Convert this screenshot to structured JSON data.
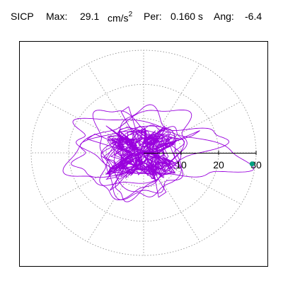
{
  "header": {
    "station": "SICP",
    "max_label": "Max:",
    "max_value": "29.1",
    "max_unit": "cm/s",
    "max_unit_exp": "2",
    "period_label": "Per:",
    "period_value": "0.160 s",
    "angle_label": "Ang:",
    "angle_value": "-6.4"
  },
  "chart_data": {
    "type": "scatter",
    "plot_kind": "polar particle-motion orbit",
    "max_amplitude": 29.1,
    "max_unit": "cm/s^2",
    "period_s": 0.16,
    "angle_deg": -6.4,
    "r_ticks": [
      10,
      20,
      30
    ],
    "r_tick_labels": [
      "10",
      "20",
      "30"
    ],
    "r_max": 30,
    "peak_point": {
      "r": 29.1,
      "theta_deg": -6.4
    },
    "grid": true,
    "grid_rings": [
      10,
      20,
      30
    ],
    "grid_spoke_step_deg": 30,
    "colors": {
      "trace": "#9900dd",
      "peak_marker": "#00a080",
      "grid": "#888888",
      "axis": "#000000"
    },
    "trace_orbits": [
      {
        "rx": 10,
        "ry": 5,
        "rot_deg": 10,
        "cx": 0,
        "cy": 0
      },
      {
        "rx": 23,
        "ry": 7,
        "rot_deg": -12,
        "cx": 3,
        "cy": 1
      },
      {
        "rx": 20,
        "ry": 6,
        "rot_deg": 10,
        "cx": 0,
        "cy": 1
      },
      {
        "rx": 11,
        "ry": 8,
        "rot_deg": 35,
        "cx": -2,
        "cy": -3
      },
      {
        "rx": 12,
        "ry": 6,
        "rot_deg": 55,
        "cx": 1,
        "cy": -2
      },
      {
        "rx": 14,
        "ry": 8,
        "rot_deg": -50,
        "cx": -2,
        "cy": 0
      },
      {
        "rx": 17,
        "ry": 9,
        "rot_deg": 25,
        "cx": -3,
        "cy": 1
      },
      {
        "rx": 13,
        "ry": 9,
        "rot_deg": 80,
        "cx": 0,
        "cy": -1
      }
    ]
  }
}
